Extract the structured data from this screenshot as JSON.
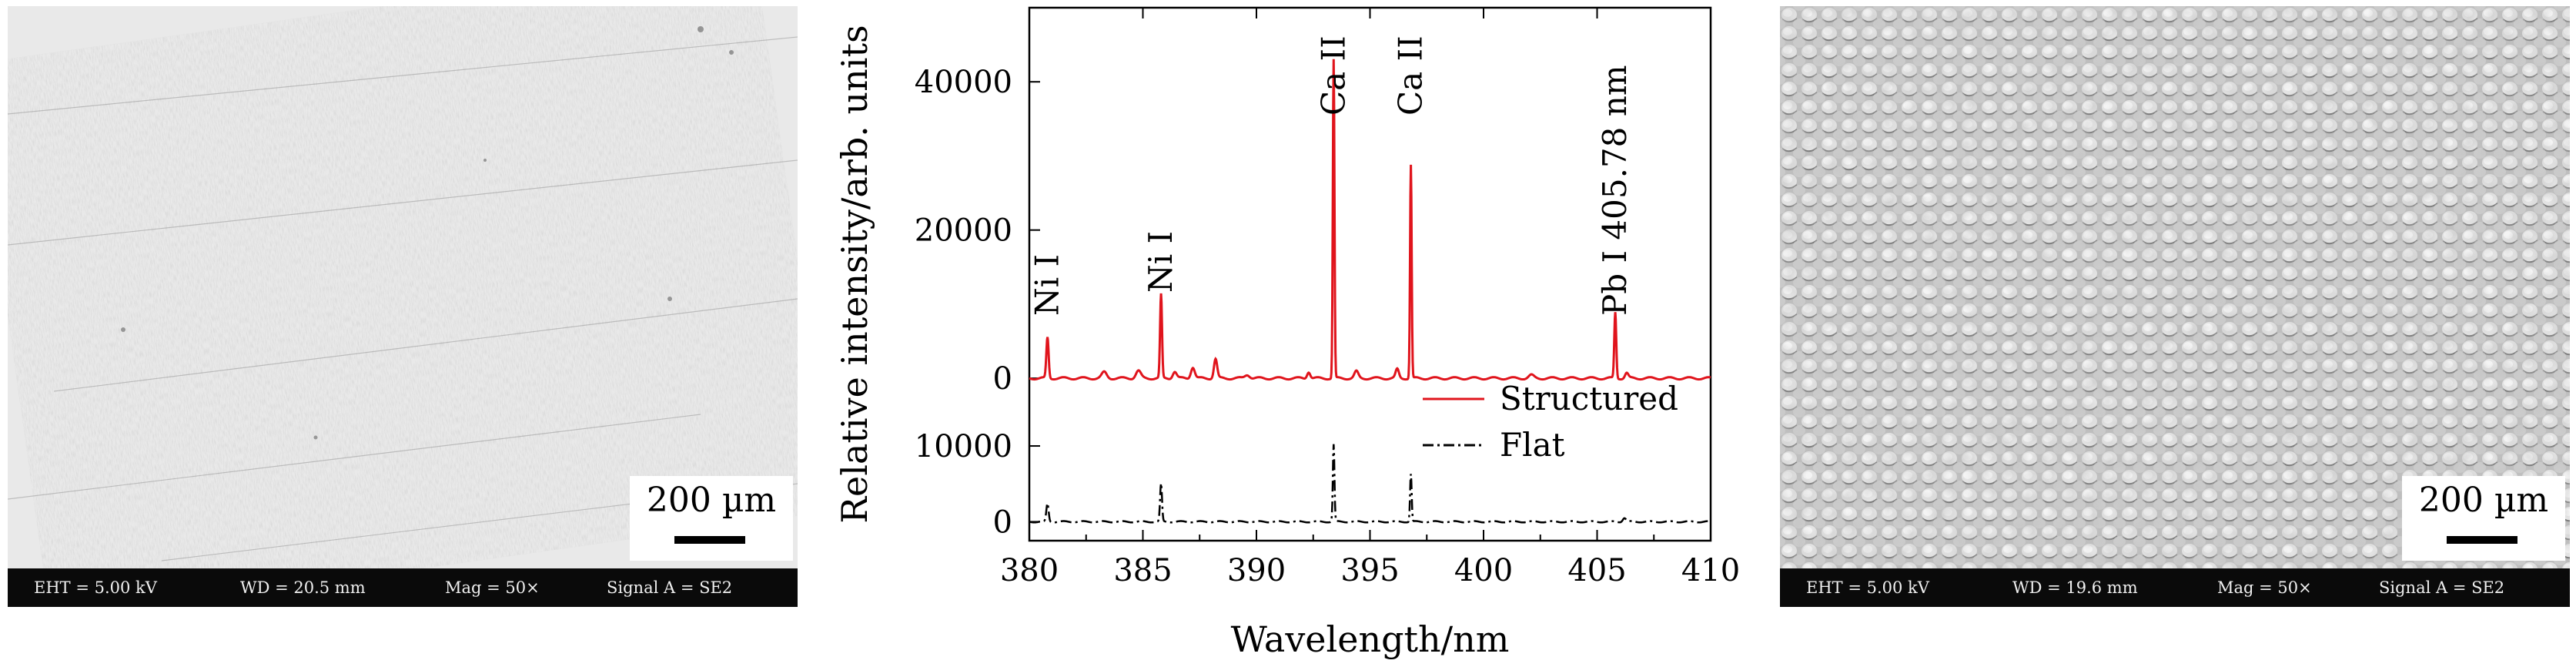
{
  "left_panel": {
    "scale_bar_label": "200 µm",
    "info": {
      "eht": "EHT = 5.00 kV",
      "wd": "WD = 20.5 mm",
      "mag": "Mag = 50×",
      "signal": "Signal A = SE2"
    }
  },
  "right_panel": {
    "scale_bar_label": "200 µm",
    "info": {
      "eht": "EHT = 5.00 kV",
      "wd": "WD = 19.6 mm",
      "mag": "Mag = 50×",
      "signal": "Signal A = SE2"
    }
  },
  "chart_data": {
    "type": "line",
    "title": "",
    "xlabel": "Wavelength/nm",
    "ylabel": "Relative intensity/arb. units",
    "xlim": [
      380,
      410
    ],
    "x_ticks": [
      "380",
      "385",
      "390",
      "395",
      "400",
      "405",
      "410"
    ],
    "grid": false,
    "legend": {
      "position": "right",
      "entries": [
        "Structured",
        "Flat"
      ]
    },
    "panels": [
      {
        "name": "Structured",
        "color": "#e0141c",
        "ylim": [
          -3000,
          50000
        ],
        "y_ticks": [
          "0",
          "20000",
          "40000"
        ],
        "baseline": 0,
        "peaks": [
          {
            "x": 380.8,
            "y": 5500,
            "w": 0.07
          },
          {
            "x": 383.3,
            "y": 800,
            "w": 0.15
          },
          {
            "x": 384.8,
            "y": 1000,
            "w": 0.15
          },
          {
            "x": 385.8,
            "y": 11300,
            "w": 0.06
          },
          {
            "x": 386.4,
            "y": 900,
            "w": 0.12
          },
          {
            "x": 387.2,
            "y": 1500,
            "w": 0.12
          },
          {
            "x": 388.2,
            "y": 2600,
            "w": 0.1
          },
          {
            "x": 389.6,
            "y": 500,
            "w": 0.15
          },
          {
            "x": 392.3,
            "y": 900,
            "w": 0.1
          },
          {
            "x": 393.4,
            "y": 43000,
            "w": 0.05
          },
          {
            "x": 394.4,
            "y": 900,
            "w": 0.12
          },
          {
            "x": 396.2,
            "y": 1200,
            "w": 0.1
          },
          {
            "x": 396.8,
            "y": 28800,
            "w": 0.05
          },
          {
            "x": 402.1,
            "y": 400,
            "w": 0.15
          },
          {
            "x": 405.8,
            "y": 8900,
            "w": 0.06
          },
          {
            "x": 406.3,
            "y": 700,
            "w": 0.1
          }
        ]
      },
      {
        "name": "Flat",
        "color": "#000000",
        "ylim": [
          -2500,
          16000
        ],
        "y_ticks": [
          "0",
          "10000"
        ],
        "baseline": 0,
        "peaks": [
          {
            "x": 380.8,
            "y": 2400,
            "w": 0.07
          },
          {
            "x": 385.8,
            "y": 5000,
            "w": 0.06
          },
          {
            "x": 393.4,
            "y": 10200,
            "w": 0.05
          },
          {
            "x": 396.8,
            "y": 6300,
            "w": 0.05
          },
          {
            "x": 406.2,
            "y": 500,
            "w": 0.1
          }
        ]
      }
    ],
    "annotations": [
      "Ni I",
      "Ni I",
      "Ca II",
      "Ca II",
      "Pb I 405.78 nm"
    ],
    "annotation_x": [
      380.8,
      385.8,
      393.4,
      396.8,
      405.8
    ]
  }
}
